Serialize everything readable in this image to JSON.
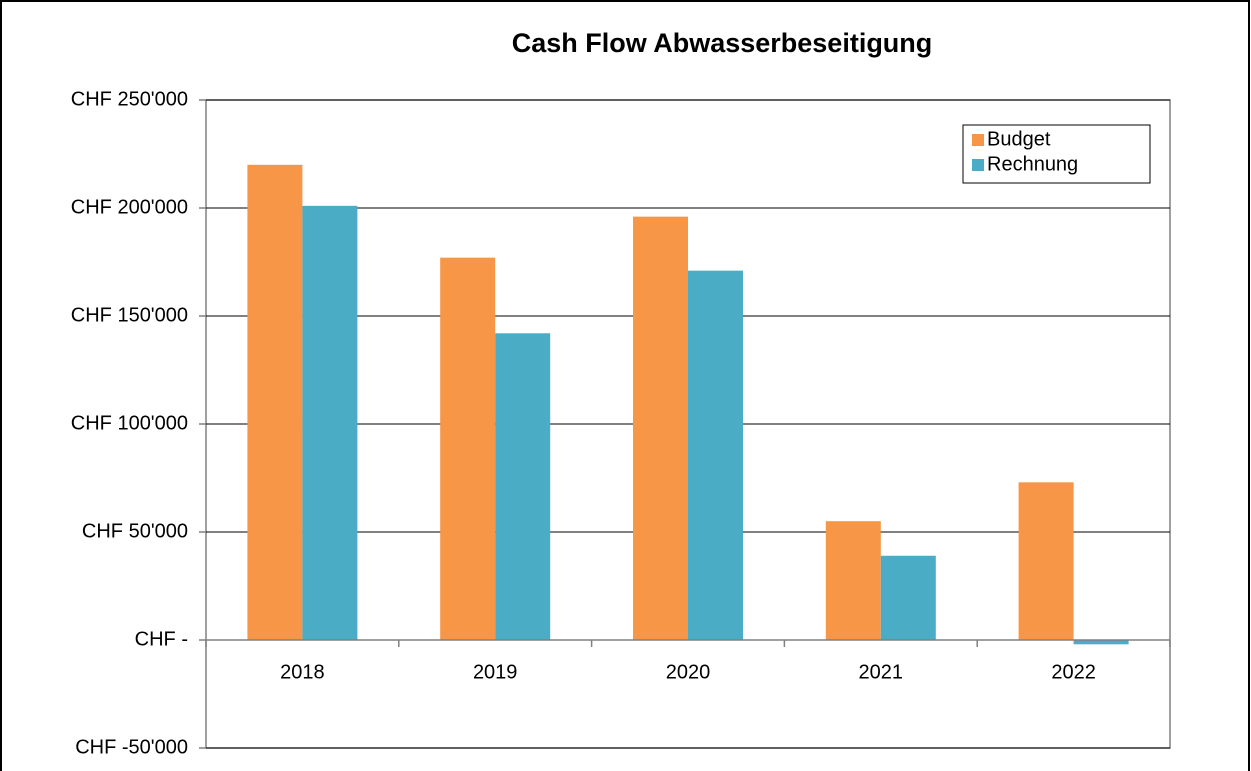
{
  "chart_data": {
    "type": "bar",
    "title": "Cash Flow Abwasserbeseitigung",
    "categories": [
      "2018",
      "2019",
      "2020",
      "2021",
      "2022"
    ],
    "series": [
      {
        "name": "Budget",
        "color": "#f79646",
        "values": [
          220000,
          177000,
          196000,
          55000,
          73000
        ]
      },
      {
        "name": "Rechnung",
        "color": "#4bacc6",
        "values": [
          201000,
          142000,
          171000,
          39000,
          -2000
        ]
      }
    ],
    "ylim": [
      -50000,
      250000
    ],
    "yticks": [
      {
        "value": -50000,
        "label": "CHF -50'000"
      },
      {
        "value": 0,
        "label": "CHF -"
      },
      {
        "value": 50000,
        "label": "CHF 50'000"
      },
      {
        "value": 100000,
        "label": "CHF 100'000"
      },
      {
        "value": 150000,
        "label": "CHF 150'000"
      },
      {
        "value": 200000,
        "label": "CHF 200'000"
      },
      {
        "value": 250000,
        "label": "CHF 250'000"
      }
    ],
    "grid": true,
    "legend": "upper right"
  }
}
